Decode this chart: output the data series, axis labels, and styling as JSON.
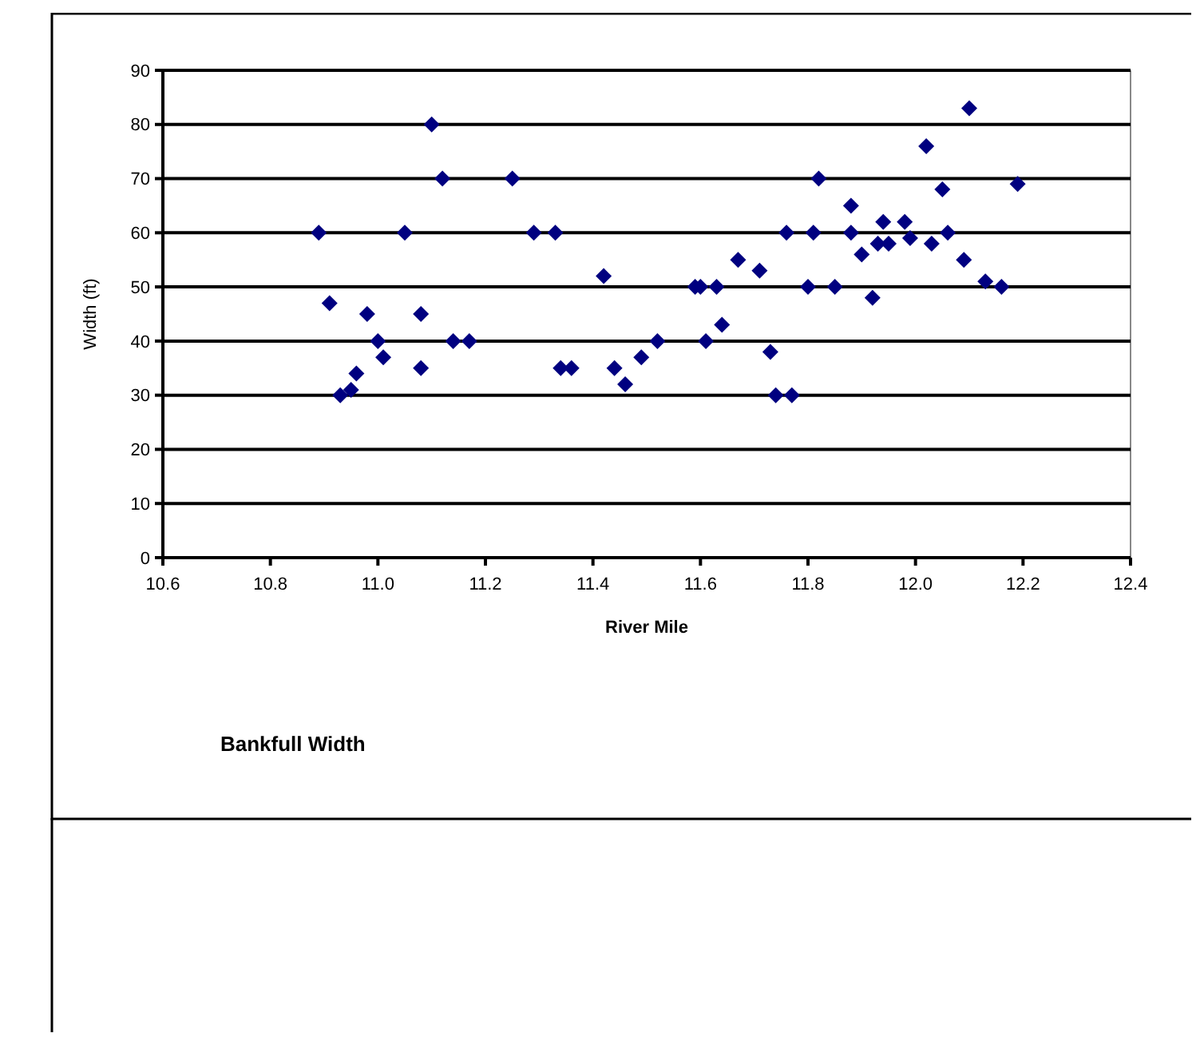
{
  "chart_data": {
    "type": "scatter",
    "title": "Bankfull Width",
    "xlabel": "River Mile",
    "ylabel": "Width (ft)",
    "x": [
      10.89,
      10.91,
      10.93,
      10.95,
      10.96,
      10.98,
      11.0,
      11.01,
      11.05,
      11.08,
      11.08,
      11.1,
      11.12,
      11.14,
      11.17,
      11.25,
      11.29,
      11.33,
      11.34,
      11.36,
      11.42,
      11.44,
      11.46,
      11.49,
      11.52,
      11.59,
      11.6,
      11.61,
      11.63,
      11.64,
      11.67,
      11.71,
      11.73,
      11.74,
      11.76,
      11.77,
      11.8,
      11.81,
      11.82,
      11.85,
      11.88,
      11.88,
      11.9,
      11.92,
      11.93,
      11.94,
      11.95,
      11.98,
      11.99,
      12.02,
      12.03,
      12.05,
      12.06,
      12.09,
      12.1,
      12.13,
      12.16,
      12.19
    ],
    "series": [
      {
        "color": "#000080",
        "values": [
          60,
          47,
          30,
          31,
          34,
          45,
          40,
          37,
          60,
          35,
          45,
          80,
          70,
          40,
          40,
          70,
          60,
          60,
          35,
          35,
          52,
          35,
          32,
          37,
          40,
          50,
          50,
          40,
          50,
          43,
          55,
          53,
          38,
          30,
          60,
          30,
          50,
          60,
          70,
          50,
          65,
          60,
          56,
          48,
          58,
          62,
          58,
          62,
          59,
          76,
          58,
          68,
          60,
          55,
          83,
          51,
          50,
          69
        ]
      }
    ],
    "marker": "diamond",
    "xlim": [
      10.6,
      12.4
    ],
    "xticks": [
      {
        "value": 10.6,
        "label": "10.6"
      },
      {
        "value": 10.8,
        "label": "10.8"
      },
      {
        "value": 11,
        "label": "11.0"
      },
      {
        "value": 11.2,
        "label": "11.2"
      },
      {
        "value": 11.4,
        "label": "11.4"
      },
      {
        "value": 11.6,
        "label": "11.6"
      },
      {
        "value": 11.8,
        "label": "11.8"
      },
      {
        "value": 12,
        "label": "12.0"
      },
      {
        "value": 12.2,
        "label": "12.2"
      },
      {
        "value": 12.4,
        "label": "12.4"
      }
    ],
    "ylim": [
      0,
      90
    ],
    "yticks": [
      0,
      10,
      20,
      30,
      40,
      50,
      60,
      70,
      80,
      90
    ],
    "grid": "y"
  }
}
